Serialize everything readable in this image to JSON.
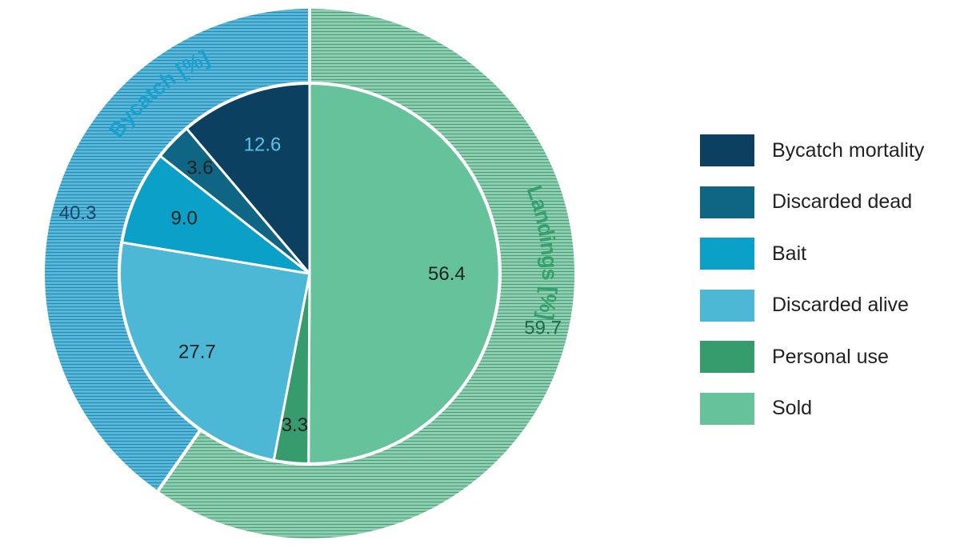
{
  "chart_data": {
    "type": "pie",
    "variant": "nested-donut",
    "rings": [
      {
        "ring": "outer",
        "pattern": "horizontal-stripes",
        "slices": [
          {
            "label": "Landings [%]",
            "value": 59.7,
            "value_label": "59.7",
            "color": "#8ccfae",
            "stripe_color": "#4f9a7c",
            "label_color": "#34a06d",
            "value_color": "#1f6b4e"
          },
          {
            "label": "Bycatch [%]",
            "value": 40.3,
            "value_label": "40.3",
            "color": "#56b8d8",
            "stripe_color": "#2a85b0",
            "label_color": "#1aa0cf",
            "value_color": "#17496b"
          }
        ]
      },
      {
        "ring": "inner",
        "slices": [
          {
            "label": "Sold",
            "value": 56.4,
            "value_label": "56.4",
            "color": "#66c29b",
            "value_color": "#222222"
          },
          {
            "label": "Personal use",
            "value": 3.3,
            "value_label": "3.3",
            "color": "#379c6d",
            "value_color": "#222222"
          },
          {
            "label": "Discarded alive",
            "value": 27.7,
            "value_label": "27.7",
            "color": "#4cb8d6",
            "value_color": "#222222"
          },
          {
            "label": "Bait",
            "value": 9.0,
            "value_label": "9.0",
            "color": "#0aa0c8",
            "value_color": "#222222"
          },
          {
            "label": "Discarded dead",
            "value": 3.6,
            "value_label": "3.6",
            "color": "#0f6584",
            "value_color": "#222222"
          },
          {
            "label": "Bycatch mortality",
            "value": 12.6,
            "value_label": "12.6",
            "color": "#0b4060",
            "value_color": "#5cc3e4"
          }
        ]
      }
    ],
    "direction": "clockwise",
    "start": "top",
    "legend": {
      "position": "right",
      "entries": [
        {
          "label": "Bycatch mortality",
          "color": "#0b4060"
        },
        {
          "label": "Discarded dead",
          "color": "#0f6584"
        },
        {
          "label": "Bait",
          "color": "#0aa0c8"
        },
        {
          "label": "Discarded alive",
          "color": "#4cb8d6"
        },
        {
          "label": "Personal use",
          "color": "#379c6d"
        },
        {
          "label": "Sold",
          "color": "#66c29b"
        }
      ]
    }
  }
}
